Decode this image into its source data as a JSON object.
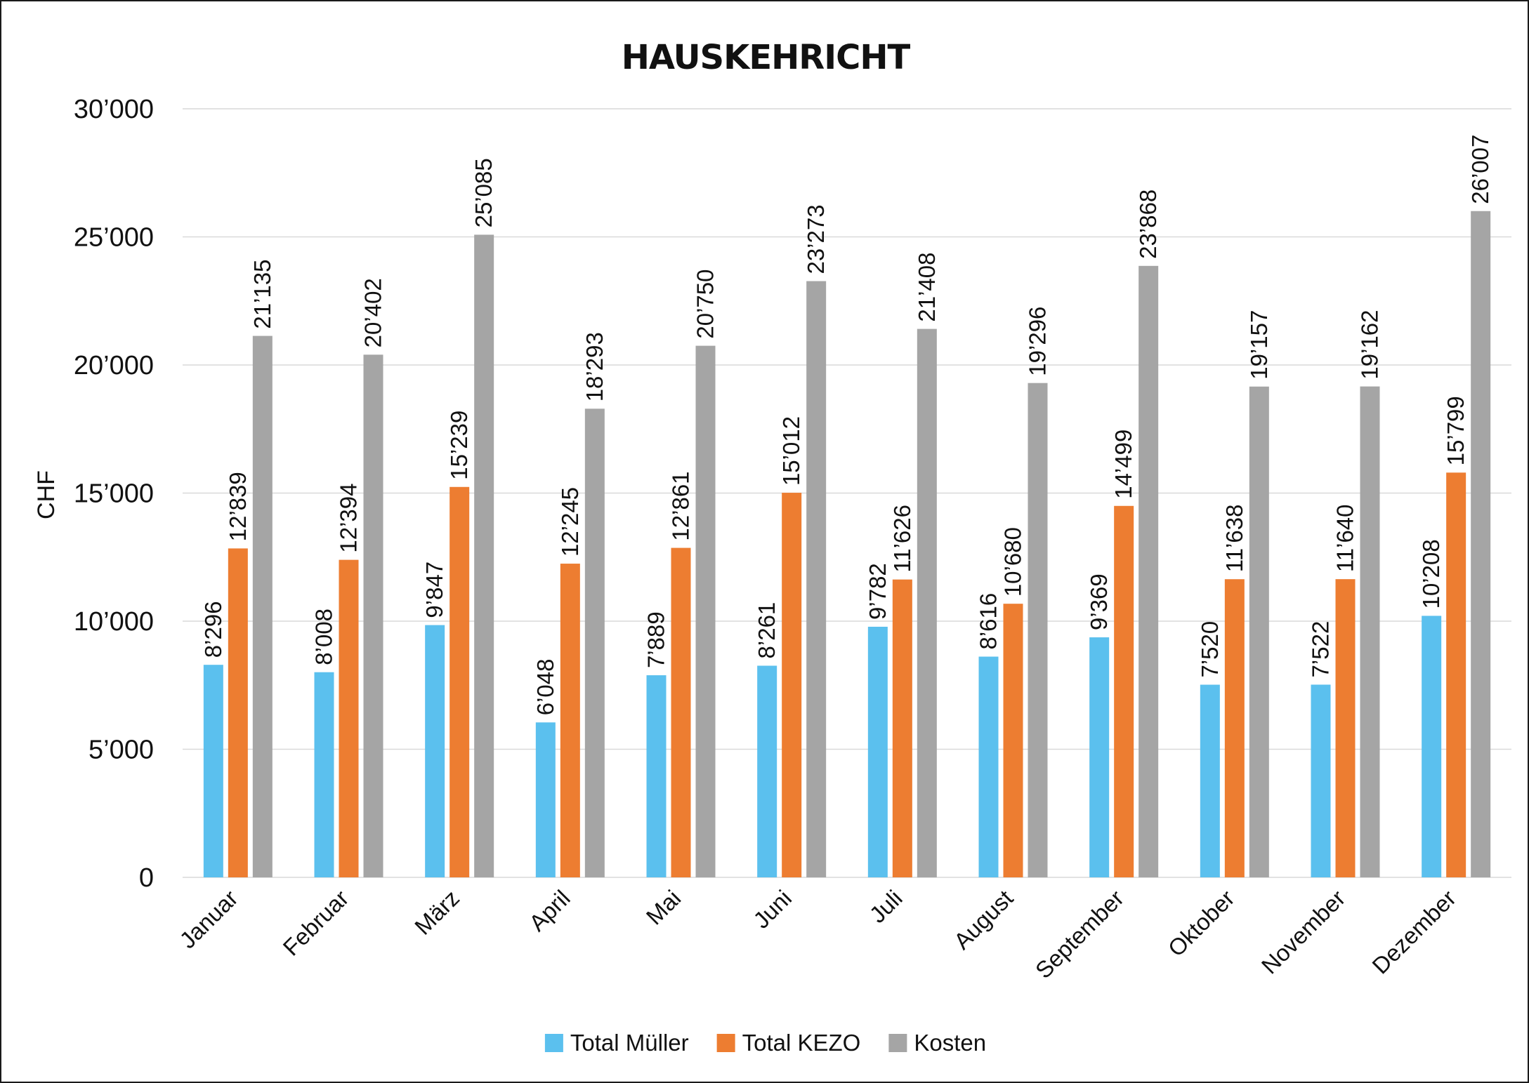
{
  "chart_data": {
    "type": "bar",
    "title": "HAUSKEHRICHT",
    "xlabel": "",
    "ylabel": "CHF",
    "ylim": [
      0,
      30000
    ],
    "yticks": [
      0,
      5000,
      10000,
      15000,
      20000,
      25000,
      30000
    ],
    "ytick_labels": [
      "0",
      "5’000",
      "10’000",
      "15’000",
      "20’000",
      "25’000",
      "30’000"
    ],
    "grid": true,
    "legend_position": "bottom",
    "categories": [
      "Januar",
      "Februar",
      "März",
      "April",
      "Mai",
      "Juni",
      "Juli",
      "August",
      "September",
      "Oktober",
      "November",
      "Dezember"
    ],
    "series": [
      {
        "name": "Total Müller",
        "color": "#5bc0ee",
        "values": [
          8296,
          8008,
          9847,
          6048,
          7889,
          8261,
          9782,
          8616,
          9369,
          7520,
          7522,
          10208
        ],
        "labels": [
          "8’296",
          "8’008",
          "9’847",
          "6’048",
          "7’889",
          "8’261",
          "9’782",
          "8’616",
          "9’369",
          "7’520",
          "7’522",
          "10’208"
        ]
      },
      {
        "name": "Total KEZO",
        "color": "#ed7d31",
        "values": [
          12839,
          12394,
          15239,
          12245,
          12861,
          15012,
          11626,
          10680,
          14499,
          11638,
          11640,
          15799
        ],
        "labels": [
          "12’839",
          "12’394",
          "15’239",
          "12’245",
          "12’861",
          "15’012",
          "11’626",
          "10’680",
          "14’499",
          "11’638",
          "11’640",
          "15’799"
        ]
      },
      {
        "name": "Kosten",
        "color": "#a5a5a5",
        "values": [
          21135,
          20402,
          25085,
          18293,
          20750,
          23273,
          21408,
          19296,
          23868,
          19157,
          19162,
          26007
        ],
        "labels": [
          "21’135",
          "20’402",
          "25’085",
          "18’293",
          "20’750",
          "23’273",
          "21’408",
          "19’296",
          "23’868",
          "19’157",
          "19’162",
          "26’007"
        ]
      }
    ]
  }
}
